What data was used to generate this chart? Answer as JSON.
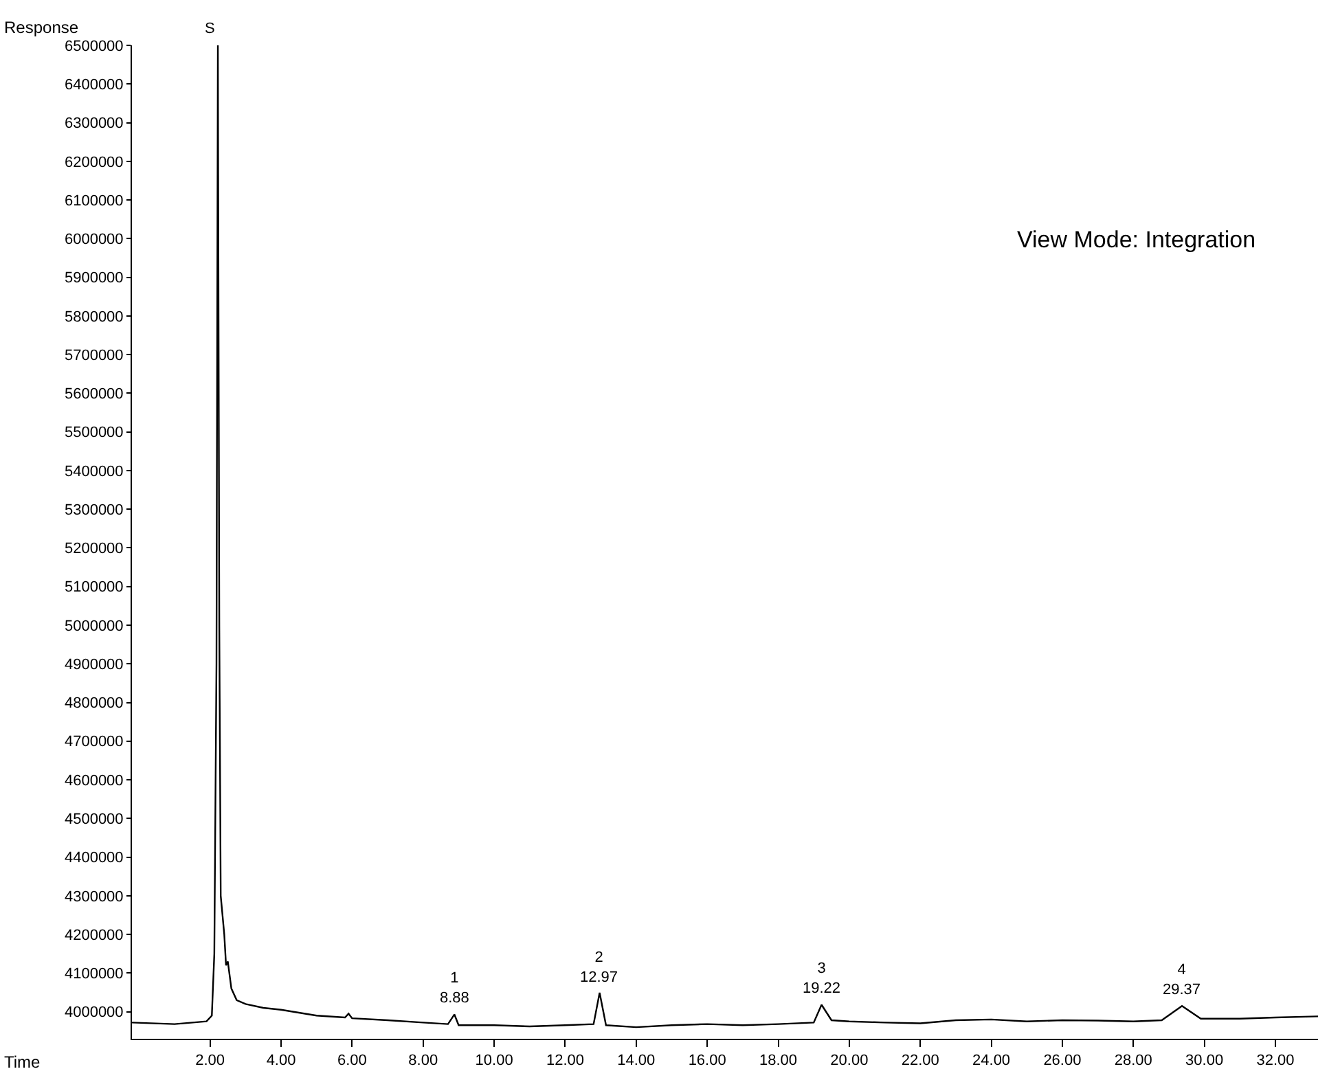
{
  "chart_data": {
    "type": "line",
    "xlabel": "Time",
    "ylabel": "Response",
    "xlim": [
      -0.2,
      33.2
    ],
    "ylim": [
      3930000,
      6500000
    ],
    "xticks": [
      {
        "value": 2,
        "label": "2.00"
      },
      {
        "value": 4,
        "label": "4.00"
      },
      {
        "value": 6,
        "label": "6.00"
      },
      {
        "value": 8,
        "label": "8.00"
      },
      {
        "value": 10,
        "label": "10.00"
      },
      {
        "value": 12,
        "label": "12.00"
      },
      {
        "value": 14,
        "label": "14.00"
      },
      {
        "value": 16,
        "label": "16.00"
      },
      {
        "value": 18,
        "label": "18.00"
      },
      {
        "value": 20,
        "label": "20.00"
      },
      {
        "value": 22,
        "label": "22.00"
      },
      {
        "value": 24,
        "label": "24.00"
      },
      {
        "value": 26,
        "label": "26.00"
      },
      {
        "value": 28,
        "label": "28.00"
      },
      {
        "value": 30,
        "label": "30.00"
      },
      {
        "value": 32,
        "label": "32.00"
      }
    ],
    "yticks": [
      4000000,
      4100000,
      4200000,
      4300000,
      4400000,
      4500000,
      4600000,
      4700000,
      4800000,
      4900000,
      5000000,
      5100000,
      5200000,
      5300000,
      5400000,
      5500000,
      5600000,
      5700000,
      5800000,
      5900000,
      6000000,
      6100000,
      6200000,
      6300000,
      6400000,
      6500000
    ],
    "marker": "none",
    "line_style": "solid",
    "series": [
      {
        "color": "#000000",
        "x": [
          -0.2,
          1.0,
          1.9,
          2.05,
          2.12,
          2.18,
          2.22,
          2.26,
          2.3,
          2.35,
          2.4,
          2.45,
          2.5,
          2.6,
          2.75,
          3.0,
          3.5,
          4.0,
          5.0,
          5.8,
          5.9,
          6.0,
          7.0,
          8.0,
          8.7,
          8.88,
          9.0,
          10,
          11,
          12,
          12.8,
          12.97,
          13.15,
          14,
          15,
          16,
          17,
          18,
          19,
          19.22,
          19.5,
          20,
          21,
          22,
          23,
          24,
          25,
          26,
          27,
          28,
          28.8,
          29.37,
          29.9,
          31,
          32,
          33.2
        ],
        "values": [
          3972000,
          3968000,
          3975000,
          3990000,
          4150000,
          4900000,
          6500000,
          5000000,
          4300000,
          4250000,
          4200000,
          4120000,
          4130000,
          4060000,
          4030000,
          4020000,
          4010000,
          4005000,
          3990000,
          3985000,
          3995000,
          3983000,
          3978000,
          3972000,
          3968000,
          3993000,
          3965000,
          3965000,
          3962000,
          3965000,
          3968000,
          4049000,
          3965000,
          3960000,
          3965000,
          3968000,
          3965000,
          3968000,
          3972000,
          4018000,
          3978000,
          3975000,
          3972000,
          3970000,
          3978000,
          3980000,
          3975000,
          3978000,
          3977000,
          3975000,
          3978000,
          4015000,
          3982000,
          3982000,
          3985000,
          3988000
        ]
      }
    ],
    "annotations": [
      {
        "text": "S",
        "x": 2.22,
        "y": 6500000
      },
      {
        "text": "1\n8.88",
        "x": 8.88,
        "y": 3993000
      },
      {
        "text": "2\n12.97",
        "x": 12.97,
        "y": 4049000
      },
      {
        "text": "3\n19.22",
        "x": 19.22,
        "y": 4018000
      },
      {
        "text": "4\n29.37",
        "x": 29.37,
        "y": 4015000
      },
      "View Mode: Integration"
    ]
  }
}
